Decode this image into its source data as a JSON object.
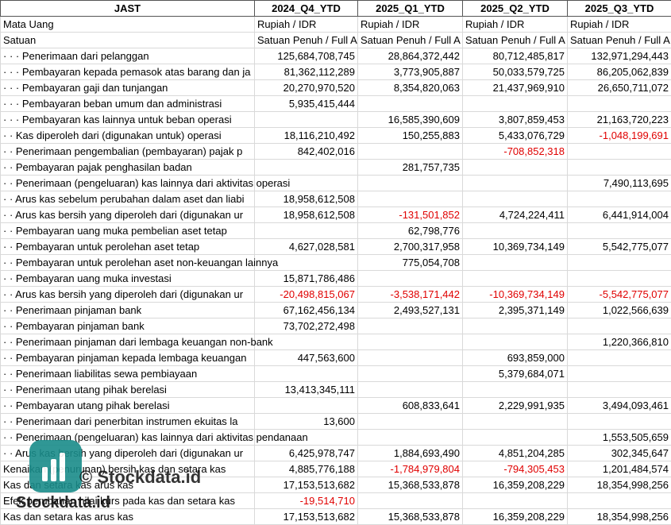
{
  "table": {
    "header": [
      "JAST",
      "2024_Q4_YTD",
      "2025_Q1_YTD",
      "2025_Q2_YTD",
      "2025_Q3_YTD"
    ],
    "rows": [
      {
        "label": "Mata Uang",
        "values": [
          "Rupiah / IDR",
          "Rupiah / IDR",
          "Rupiah / IDR",
          "Rupiah / IDR"
        ],
        "align": "left"
      },
      {
        "label": "Satuan",
        "values": [
          "Satuan Penuh / Full A",
          "Satuan Penuh / Full A",
          "Satuan Penuh / Full A",
          "Satuan Penuh / Full A"
        ],
        "align": "left"
      },
      {
        "label": "· · · Penerimaan dari pelanggan",
        "values": [
          "125,684,708,745",
          "28,864,372,442",
          "80,712,485,817",
          "132,971,294,443"
        ]
      },
      {
        "label": "· · · Pembayaran kepada pemasok atas barang dan ja",
        "values": [
          "81,362,112,289",
          "3,773,905,887",
          "50,033,579,725",
          "86,205,062,839"
        ]
      },
      {
        "label": "· · · Pembayaran gaji dan tunjangan",
        "values": [
          "20,270,970,520",
          "8,354,820,063",
          "21,437,969,910",
          "26,650,711,072"
        ]
      },
      {
        "label": "· · · Pembayaran beban umum dan administrasi",
        "values": [
          "5,935,415,444",
          null,
          null,
          null
        ]
      },
      {
        "label": "· · · Pembayaran kas lainnya untuk beban operasi",
        "values": [
          null,
          "16,585,390,609",
          "3,807,859,453",
          "21,163,720,223"
        ]
      },
      {
        "label": "· · Kas diperoleh dari (digunakan untuk) operasi",
        "values": [
          "18,116,210,492",
          "150,255,883",
          "5,433,076,729",
          "-1,048,199,691"
        ]
      },
      {
        "label": "· · Penerimaan pengembalian (pembayaran) pajak p",
        "values": [
          "842,402,016",
          null,
          "-708,852,318",
          null
        ]
      },
      {
        "label": "· · Pembayaran pajak penghasilan badan",
        "values": [
          null,
          "281,757,735",
          null,
          null
        ]
      },
      {
        "label": "· · Penerimaan (pengeluaran) kas lainnya dari aktivitas operasi",
        "values": [
          null,
          null,
          null,
          "7,490,113,695"
        ]
      },
      {
        "label": "· · Arus kas sebelum perubahan dalam aset dan liabi",
        "values": [
          "18,958,612,508",
          null,
          null,
          null
        ]
      },
      {
        "label": "· · Arus kas bersih yang diperoleh dari (digunakan ur",
        "values": [
          "18,958,612,508",
          "-131,501,852",
          "4,724,224,411",
          "6,441,914,004"
        ]
      },
      {
        "label": "· · Pembayaran uang muka pembelian aset tetap",
        "values": [
          null,
          "62,798,776",
          null,
          null
        ]
      },
      {
        "label": "· · Pembayaran untuk perolehan aset tetap",
        "values": [
          "4,627,028,581",
          "2,700,317,958",
          "10,369,734,149",
          "5,542,775,077"
        ]
      },
      {
        "label": "· · Pembayaran untuk perolehan aset non-keuangan lainnya",
        "values": [
          null,
          "775,054,708",
          null,
          null
        ]
      },
      {
        "label": "· · Pembayaran uang muka investasi",
        "values": [
          "15,871,786,486",
          null,
          null,
          null
        ]
      },
      {
        "label": "· · Arus kas bersih yang diperoleh dari (digunakan ur",
        "values": [
          "-20,498,815,067",
          "-3,538,171,442",
          "-10,369,734,149",
          "-5,542,775,077"
        ]
      },
      {
        "label": "· · Penerimaan pinjaman bank",
        "values": [
          "67,162,456,134",
          "2,493,527,131",
          "2,395,371,149",
          "1,022,566,639"
        ]
      },
      {
        "label": "· · Pembayaran pinjaman bank",
        "values": [
          "73,702,272,498",
          null,
          null,
          null
        ]
      },
      {
        "label": "· · Penerimaan pinjaman dari lembaga keuangan non-bank",
        "values": [
          null,
          null,
          null,
          "1,220,366,810"
        ]
      },
      {
        "label": "· · Pembayaran pinjaman kepada lembaga keuangan",
        "values": [
          "447,563,600",
          null,
          "693,859,000",
          null
        ]
      },
      {
        "label": "· · Penerimaan liabilitas sewa pembiayaan",
        "values": [
          null,
          null,
          "5,379,684,071",
          null
        ]
      },
      {
        "label": "· · Penerimaan utang pihak berelasi",
        "values": [
          "13,413,345,111",
          null,
          null,
          null
        ]
      },
      {
        "label": "· · Pembayaran utang pihak berelasi",
        "values": [
          null,
          "608,833,641",
          "2,229,991,935",
          "3,494,093,461"
        ]
      },
      {
        "label": "· · Penerimaan dari penerbitan instrumen ekuitas la",
        "values": [
          "13,600",
          null,
          null,
          null
        ]
      },
      {
        "label": "· · Penerimaan (pengeluaran) kas lainnya dari aktivitas pendanaan",
        "values": [
          null,
          null,
          null,
          "1,553,505,659"
        ]
      },
      {
        "label": "· · Arus kas bersih yang diperoleh dari (digunakan ur",
        "values": [
          "6,425,978,747",
          "1,884,693,490",
          "4,851,204,285",
          "302,345,647"
        ]
      },
      {
        "label": "Kenaikan (penurunan) bersih kas dan setara kas",
        "values": [
          "4,885,776,188",
          "-1,784,979,804",
          "-794,305,453",
          "1,201,484,574"
        ]
      },
      {
        "label": "Kas dan setara kas arus kas",
        "values": [
          "17,153,513,682",
          "15,368,533,878",
          "16,359,208,229",
          "18,354,998,256"
        ]
      },
      {
        "label": "Efek perubahan nilai kurs pada kas dan setara kas",
        "values": [
          "-19,514,710",
          null,
          null,
          null
        ]
      },
      {
        "label": "Kas dan setara kas arus kas",
        "values": [
          "17,153,513,682",
          "15,368,533,878",
          "16,359,208,229",
          "18,354,998,256"
        ]
      }
    ]
  },
  "watermark": {
    "center": "© Stockdata.id",
    "logo_text": "Stockdata.id"
  }
}
